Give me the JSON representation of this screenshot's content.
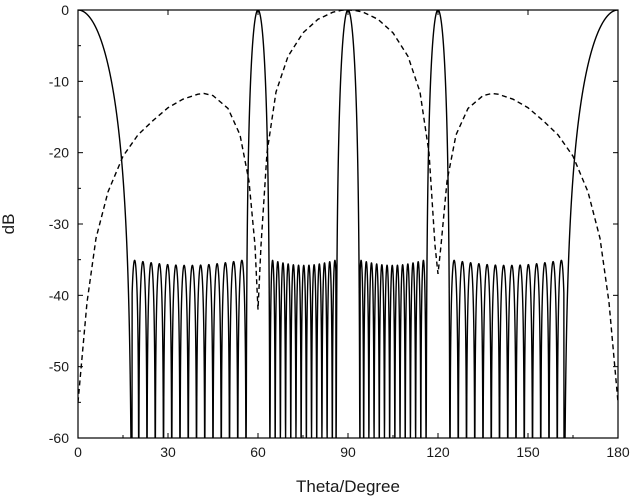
{
  "chart_data": {
    "type": "line",
    "title": "",
    "xlabel": "Theta/Degree",
    "ylabel": "dB",
    "xlim": [
      0,
      180
    ],
    "ylim": [
      -60,
      0
    ],
    "x_ticks": [
      0,
      30,
      60,
      90,
      120,
      150,
      180
    ],
    "x_tick_labels": [
      "0",
      "30",
      "60",
      "90",
      "120",
      "150",
      "180"
    ],
    "y_ticks": [
      0,
      -10,
      -20,
      -30,
      -40,
      -50,
      -60
    ],
    "y_tick_labels": [
      "0",
      "-10",
      "-20",
      "-30",
      "-40",
      "-50",
      "-60"
    ],
    "grid": false,
    "legend": "none",
    "series": [
      {
        "name": "solid",
        "style": "solid",
        "color": "#000000",
        "description": "Mainlobes of 0 dB at 0, 60, 90, 120 and 180 degrees; sidelobe region between about 17 and 163 degrees with peaks near -35 dB and deep nulls down to -60 dB",
        "mainlobes": [
          {
            "center": 0,
            "null_left": -18,
            "null_right": 18,
            "peak_db": 0
          },
          {
            "center": 60,
            "null_left": 56,
            "null_right": 64,
            "peak_db": 0
          },
          {
            "center": 90,
            "null_left": 86,
            "null_right": 94,
            "peak_db": 0
          },
          {
            "center": 120,
            "null_left": 116,
            "null_right": 124,
            "peak_db": 0
          },
          {
            "center": 180,
            "null_left": 162,
            "null_right": 198,
            "peak_db": 0
          }
        ],
        "sidelobe_segments": [
          {
            "start": 17.5,
            "end": 56,
            "lobes": 14
          },
          {
            "start": 64,
            "end": 86.5,
            "lobes": 13
          },
          {
            "start": 93.5,
            "end": 116,
            "lobes": 13
          },
          {
            "start": 124,
            "end": 162.5,
            "lobes": 14
          }
        ],
        "sidelobe_peak_db": -35,
        "null_depth_db": -60
      },
      {
        "name": "dashed",
        "style": "dashed",
        "color": "#000000",
        "x": [
          0,
          3,
          6,
          10,
          15,
          20,
          25,
          30,
          35,
          40,
          42,
          45,
          50,
          54,
          57,
          59,
          60,
          61,
          63,
          66,
          70,
          75,
          80,
          85,
          88,
          90,
          92,
          95,
          100,
          105,
          110,
          114,
          117,
          119,
          120,
          121,
          123,
          126,
          130,
          135,
          138,
          140,
          145,
          150,
          155,
          160,
          165,
          170,
          174,
          177,
          180
        ],
        "y": [
          -55,
          -41,
          -32,
          -25.5,
          -20.5,
          -17.5,
          -15.5,
          -13.7,
          -12.5,
          -11.8,
          -11.7,
          -12.0,
          -13.8,
          -17.5,
          -24,
          -33,
          -42,
          -33,
          -20,
          -11.5,
          -6.5,
          -3.2,
          -1.3,
          -0.3,
          -0.03,
          0,
          -0.03,
          -0.3,
          -1.3,
          -3.2,
          -6.5,
          -11.5,
          -20,
          -33,
          -37,
          -33,
          -24,
          -17.5,
          -13.8,
          -12.0,
          -11.7,
          -11.8,
          -12.5,
          -13.7,
          -15.5,
          -17.5,
          -20.5,
          -25.5,
          -32,
          -41,
          -55
        ]
      }
    ]
  }
}
